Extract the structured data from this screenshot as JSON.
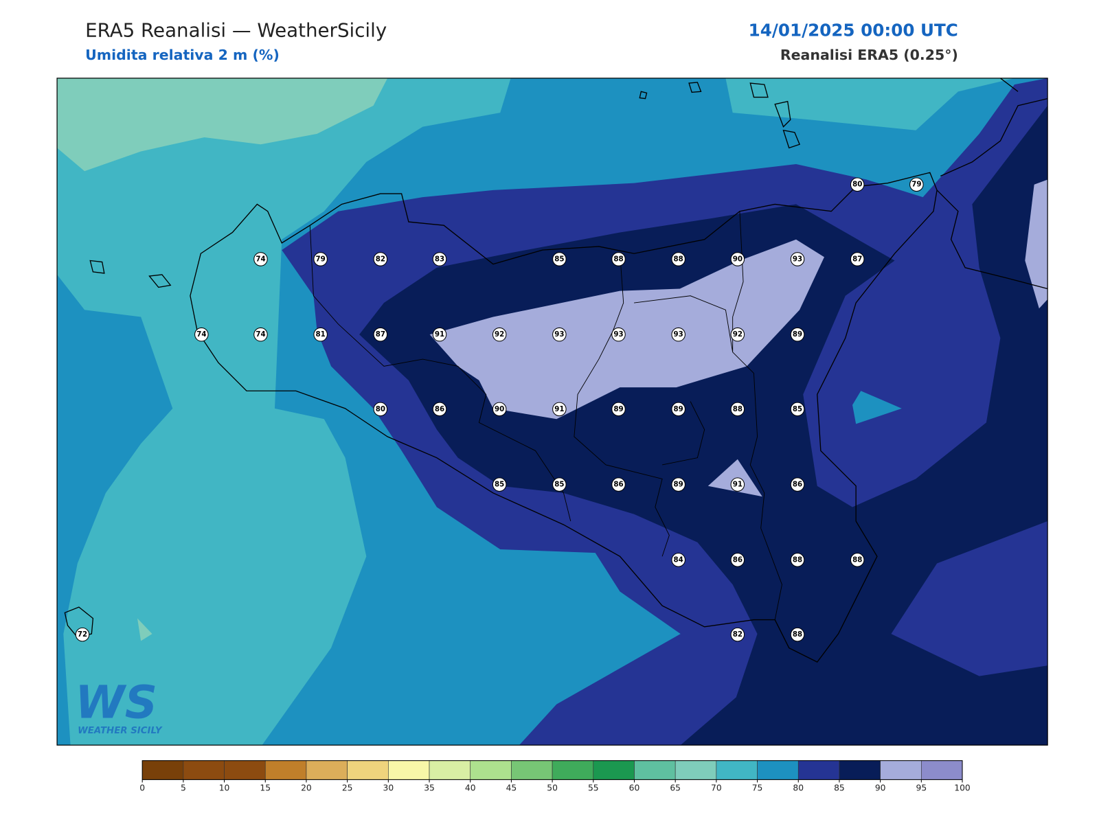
{
  "header": {
    "title": "ERA5 Reanalisi — WeatherSicily",
    "subtitle": "Umidita relativa 2 m (%)",
    "datetime": "14/01/2025 00:00 UTC",
    "source": "Reanalisi ERA5 (0.25°)"
  },
  "stations": [
    80,
    79,
    74,
    79,
    82,
    83,
    85,
    88,
    88,
    90,
    93,
    87,
    74,
    74,
    81,
    87,
    91,
    92,
    93,
    93,
    93,
    92,
    89,
    80,
    86,
    90,
    91,
    89,
    89,
    88,
    85,
    85,
    85,
    86,
    89,
    91,
    86,
    84,
    86,
    88,
    88,
    72,
    82,
    88
  ],
  "colorbar": {
    "ticks": [
      0,
      5,
      10,
      15,
      20,
      25,
      30,
      35,
      40,
      45,
      50,
      55,
      60,
      65,
      70,
      75,
      80,
      85,
      90,
      95,
      100
    ],
    "colors": [
      "#784009",
      "#8c4b10",
      "#8c4b10",
      "#c07f2a",
      "#dcae5a",
      "#efd47d",
      "#f8f7a8",
      "#d9efa4",
      "#ade18e",
      "#77c675",
      "#3fab5b",
      "#1b9850",
      "#5fc0a0",
      "#7fcdbb",
      "#41b6c4",
      "#1d91c0",
      "#253494",
      "#081d58",
      "#a5acdb",
      "#8c8ccb"
    ]
  },
  "logo": {
    "mark": "WS",
    "tagline": "WEATHER SICILY"
  }
}
